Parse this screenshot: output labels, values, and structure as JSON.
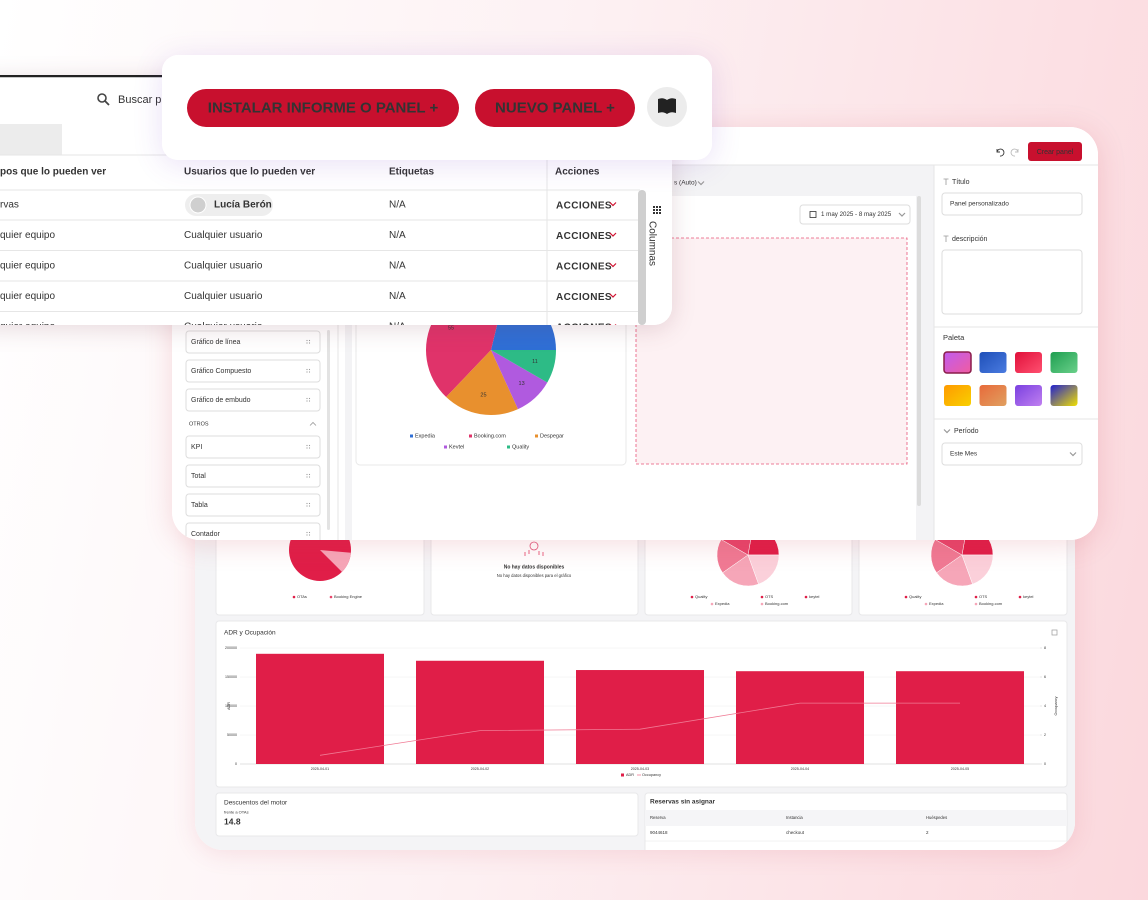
{
  "toolbar": {
    "search": "Buscar p",
    "install_button": "INSTALAR INFORME O PANEL +",
    "new_panel_button": "NUEVO PANEL +"
  },
  "table": {
    "columns": [
      "pos que lo pueden ver",
      "Usuarios que lo pueden ver",
      "Etiquetas",
      "Acciones"
    ],
    "rows": [
      [
        "rvas",
        "Lucía Berón",
        "N/A",
        "ACCIONES"
      ],
      [
        "quier equipo",
        "Cualquier usuario",
        "N/A",
        "ACCIONES"
      ],
      [
        "quier equipo",
        "Cualquier usuario",
        "N/A",
        "ACCIONES"
      ],
      [
        "quier equipo",
        "Cualquier usuario",
        "N/A",
        "ACCIONES"
      ],
      [
        "quier equipo",
        "Cualquier usuario",
        "N/A",
        "ACCIONES"
      ]
    ],
    "side_tab": "Columnas"
  },
  "editor": {
    "create_button": "Crear panel",
    "view_select": "s (Auto)",
    "date_range": "1 may 2025 - 8 may 2025",
    "widgets": [
      "Gráfico de línea",
      "Gráfico Compuesto",
      "Gráfico de embudo"
    ],
    "others_heading": "OTROS",
    "other_widgets": [
      "KPI",
      "Total",
      "Tabla",
      "Contador"
    ],
    "pie": {
      "type": "pie",
      "categories": [
        "Expedia",
        "Booking.com",
        "Despegar",
        "Kevtel",
        "Quality"
      ],
      "values": [
        28,
        55,
        25,
        13,
        11
      ],
      "colors": [
        "#2f6fd6",
        "#e0336a",
        "#e8902e",
        "#b05adf",
        "#2dbb86"
      ]
    },
    "settings": {
      "title_label": "Título",
      "title_value": "Panel personalizado",
      "description_label": "descripción",
      "palette_label": "Paleta",
      "period_label": "Período",
      "period_value": "Este Mes"
    }
  },
  "dashboard": {
    "pie_panels": [
      {
        "legend": [
          "OTAs",
          "Booking Engine"
        ]
      },
      {
        "legend": [
          "Quality",
          "OTS",
          "keytel",
          "Expedia",
          "Booking.com"
        ]
      },
      {
        "legend": [
          "Quality",
          "OTS",
          "keytel",
          "Expedia",
          "Booking.com"
        ]
      }
    ],
    "empty_title": "No hay datos disponibles",
    "empty_text": "No hay datos disponibles para el gráfico",
    "adr_chart": {
      "type": "bar",
      "title": "ADR y Ocupación",
      "categories": [
        "2025-04-01",
        "2025-04-02",
        "2025-04-03",
        "2025-04-04",
        "2025-04-05"
      ],
      "series": [
        {
          "name": "ADR",
          "color": "#e01e48",
          "values": [
            190000,
            178000,
            162000,
            160000,
            160000
          ]
        },
        {
          "name": "Occupancy",
          "color": "#f07a94",
          "type": "line",
          "axis": "y2",
          "values": [
            0.6,
            2.3,
            2.4,
            4.2,
            4.2
          ]
        }
      ],
      "ylim": [
        0,
        200000
      ],
      "yticks": [
        0,
        50000,
        100000,
        150000,
        200000
      ],
      "y2lim": [
        0,
        8
      ],
      "y2ticks": [
        0,
        2,
        4,
        6,
        8
      ],
      "ylabel": "ADR",
      "y2label": "Occupancy"
    },
    "kpi": {
      "title": "Descuentos del motor",
      "subtitle": "frente a OTAs",
      "value": 14.8
    },
    "unassigned": {
      "title": "Reservas sin asignar",
      "columns": [
        "Reserva",
        "Instancia",
        "Huéspedes"
      ],
      "rows": [
        [
          "9044618",
          "checkout",
          2
        ]
      ]
    }
  }
}
